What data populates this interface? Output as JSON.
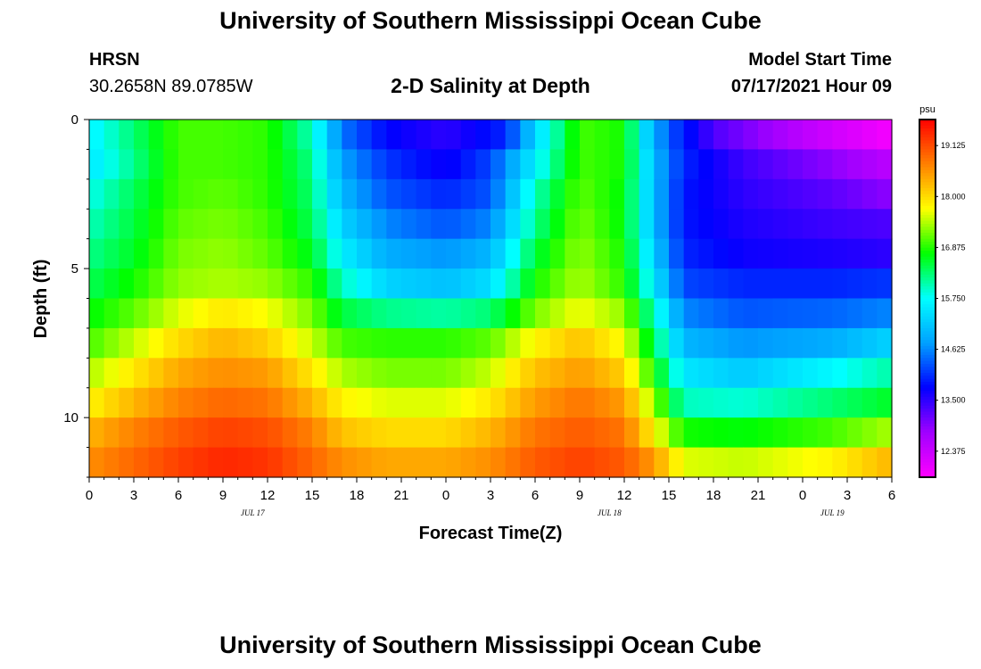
{
  "header": {
    "title": "University of Southern Mississippi Ocean Cube",
    "station": "HRSN",
    "coordinates": "30.2658N  89.0785W",
    "subtitle": "2-D Salinity at Depth",
    "model_start_label": "Model Start Time",
    "model_start_value": "07/17/2021 Hour 09"
  },
  "footer": {
    "title": "University of Southern Mississippi Ocean Cube"
  },
  "chart_data": {
    "type": "heatmap",
    "title": "2-D Salinity at Depth",
    "xlabel": "Forecast Time(Z)",
    "ylabel": "Depth (ft)",
    "x_tick_labels": [
      "0",
      "3",
      "6",
      "9",
      "12",
      "15",
      "18",
      "21",
      "0",
      "3",
      "6",
      "9",
      "12",
      "15",
      "18",
      "21",
      "0",
      "3",
      "6"
    ],
    "date_labels": [
      {
        "label": "JUL 17",
        "hour": 11
      },
      {
        "label": "JUL 18",
        "hour": 35
      },
      {
        "label": "JUL 19",
        "hour": 50
      }
    ],
    "x_range_hours": [
      0,
      54
    ],
    "y_ticks": [
      0,
      5,
      10
    ],
    "y_range_ft": [
      0,
      12
    ],
    "colorbar": {
      "unit": "psu",
      "ticks": [
        "19.125",
        "18.000",
        "16.875",
        "15.750",
        "14.625",
        "13.500",
        "12.375"
      ],
      "range": [
        11.8,
        19.7
      ],
      "colors": [
        "#ff00ff",
        "#a000ff",
        "#0000ff",
        "#00a0ff",
        "#00ffff",
        "#00ff00",
        "#ffff00",
        "#ff8000",
        "#ff0000"
      ]
    },
    "rows": [
      {
        "depth": 0.5,
        "keys": [
          [
            0,
            15.6
          ],
          [
            3,
            16.3
          ],
          [
            6,
            17.0
          ],
          [
            9,
            17.0
          ],
          [
            12,
            16.9
          ],
          [
            15,
            16.0
          ],
          [
            17,
            14.5
          ],
          [
            20,
            13.8
          ],
          [
            24,
            13.5
          ],
          [
            28,
            14.0
          ],
          [
            30,
            15.3
          ],
          [
            33,
            17.0
          ],
          [
            36,
            16.8
          ],
          [
            37.5,
            15.3
          ],
          [
            39,
            14.3
          ],
          [
            42,
            13.3
          ],
          [
            48,
            12.5
          ],
          [
            54,
            11.9
          ]
        ]
      },
      {
        "depth": 1.5,
        "keys": [
          [
            0,
            15.5
          ],
          [
            3,
            16.2
          ],
          [
            6,
            17.0
          ],
          [
            9,
            17.0
          ],
          [
            12,
            16.9
          ],
          [
            15,
            16.2
          ],
          [
            17,
            14.8
          ],
          [
            20,
            14.1
          ],
          [
            24,
            13.7
          ],
          [
            27,
            14.2
          ],
          [
            30,
            15.6
          ],
          [
            33,
            17.0
          ],
          [
            36,
            16.8
          ],
          [
            38,
            15.0
          ],
          [
            40,
            14.0
          ],
          [
            44,
            13.4
          ],
          [
            50,
            12.9
          ],
          [
            54,
            12.5
          ]
        ]
      },
      {
        "depth": 2.5,
        "keys": [
          [
            0,
            15.8
          ],
          [
            3,
            16.4
          ],
          [
            6,
            17.0
          ],
          [
            9,
            17.1
          ],
          [
            12,
            16.9
          ],
          [
            15,
            16.3
          ],
          [
            17,
            15.0
          ],
          [
            20,
            14.3
          ],
          [
            24,
            14.0
          ],
          [
            27,
            14.3
          ],
          [
            30,
            16.0
          ],
          [
            33,
            17.1
          ],
          [
            36,
            16.7
          ],
          [
            38,
            15.0
          ],
          [
            40,
            13.9
          ],
          [
            44,
            13.5
          ],
          [
            50,
            13.2
          ],
          [
            54,
            12.9
          ]
        ]
      },
      {
        "depth": 3.5,
        "keys": [
          [
            0,
            16.0
          ],
          [
            3,
            16.5
          ],
          [
            6,
            17.1
          ],
          [
            9,
            17.2
          ],
          [
            12,
            17.0
          ],
          [
            15,
            16.4
          ],
          [
            17,
            15.3
          ],
          [
            20,
            14.6
          ],
          [
            24,
            14.3
          ],
          [
            27,
            14.6
          ],
          [
            30,
            16.2
          ],
          [
            33,
            17.2
          ],
          [
            36,
            16.7
          ],
          [
            38,
            15.0
          ],
          [
            40,
            13.9
          ],
          [
            44,
            13.6
          ],
          [
            50,
            13.4
          ],
          [
            54,
            13.3
          ]
        ]
      },
      {
        "depth": 4.5,
        "keys": [
          [
            0,
            16.2
          ],
          [
            3,
            16.6
          ],
          [
            6,
            17.2
          ],
          [
            9,
            17.3
          ],
          [
            12,
            17.1
          ],
          [
            15,
            16.6
          ],
          [
            17,
            15.6
          ],
          [
            20,
            14.9
          ],
          [
            24,
            14.7
          ],
          [
            27,
            15.0
          ],
          [
            30,
            16.5
          ],
          [
            33,
            17.3
          ],
          [
            36,
            16.8
          ],
          [
            38,
            15.2
          ],
          [
            40,
            14.0
          ],
          [
            44,
            13.7
          ],
          [
            50,
            13.6
          ],
          [
            54,
            13.5
          ]
        ]
      },
      {
        "depth": 5.5,
        "keys": [
          [
            0,
            16.4
          ],
          [
            3,
            16.8
          ],
          [
            6,
            17.3
          ],
          [
            9,
            17.4
          ],
          [
            12,
            17.3
          ],
          [
            15,
            16.9
          ],
          [
            17,
            16.0
          ],
          [
            20,
            15.3
          ],
          [
            24,
            15.1
          ],
          [
            27,
            15.4
          ],
          [
            30,
            16.8
          ],
          [
            33,
            17.4
          ],
          [
            36,
            16.9
          ],
          [
            38,
            15.5
          ],
          [
            40,
            14.2
          ],
          [
            44,
            14.0
          ],
          [
            50,
            14.0
          ],
          [
            54,
            14.1
          ]
        ]
      },
      {
        "depth": 6.5,
        "keys": [
          [
            0,
            16.7
          ],
          [
            3,
            17.1
          ],
          [
            6,
            17.6
          ],
          [
            9,
            17.9
          ],
          [
            12,
            17.7
          ],
          [
            15,
            17.2
          ],
          [
            17,
            16.5
          ],
          [
            20,
            16.2
          ],
          [
            24,
            16.1
          ],
          [
            27,
            16.3
          ],
          [
            30,
            17.2
          ],
          [
            33,
            17.7
          ],
          [
            36,
            17.3
          ],
          [
            38,
            16.0
          ],
          [
            40,
            14.6
          ],
          [
            44,
            14.3
          ],
          [
            50,
            14.4
          ],
          [
            54,
            14.6
          ]
        ]
      },
      {
        "depth": 7.5,
        "keys": [
          [
            0,
            17.0
          ],
          [
            3,
            17.5
          ],
          [
            6,
            18.0
          ],
          [
            9,
            18.3
          ],
          [
            12,
            18.1
          ],
          [
            15,
            17.5
          ],
          [
            17,
            17.0
          ],
          [
            20,
            16.9
          ],
          [
            24,
            16.9
          ],
          [
            27,
            17.1
          ],
          [
            30,
            17.8
          ],
          [
            33,
            18.2
          ],
          [
            36,
            17.7
          ],
          [
            38,
            16.4
          ],
          [
            40,
            15.0
          ],
          [
            44,
            14.7
          ],
          [
            50,
            14.9
          ],
          [
            54,
            15.3
          ]
        ]
      },
      {
        "depth": 8.5,
        "keys": [
          [
            0,
            17.4
          ],
          [
            3,
            17.9
          ],
          [
            6,
            18.4
          ],
          [
            9,
            18.6
          ],
          [
            12,
            18.5
          ],
          [
            15,
            17.9
          ],
          [
            17,
            17.4
          ],
          [
            20,
            17.2
          ],
          [
            24,
            17.2
          ],
          [
            27,
            17.5
          ],
          [
            30,
            18.2
          ],
          [
            33,
            18.5
          ],
          [
            36,
            18.1
          ],
          [
            38,
            16.8
          ],
          [
            40,
            15.5
          ],
          [
            44,
            15.2
          ],
          [
            50,
            15.7
          ],
          [
            54,
            16.1
          ]
        ]
      },
      {
        "depth": 9.5,
        "keys": [
          [
            0,
            17.8
          ],
          [
            3,
            18.3
          ],
          [
            6,
            18.7
          ],
          [
            9,
            18.9
          ],
          [
            12,
            18.8
          ],
          [
            15,
            18.3
          ],
          [
            17,
            17.8
          ],
          [
            20,
            17.6
          ],
          [
            24,
            17.6
          ],
          [
            27,
            17.9
          ],
          [
            30,
            18.5
          ],
          [
            33,
            18.8
          ],
          [
            36,
            18.5
          ],
          [
            38,
            17.3
          ],
          [
            40,
            16.0
          ],
          [
            44,
            15.9
          ],
          [
            50,
            16.3
          ],
          [
            54,
            16.6
          ]
        ]
      },
      {
        "depth": 10.5,
        "keys": [
          [
            0,
            18.3
          ],
          [
            3,
            18.7
          ],
          [
            6,
            19.0
          ],
          [
            9,
            19.2
          ],
          [
            12,
            19.1
          ],
          [
            15,
            18.7
          ],
          [
            17,
            18.2
          ],
          [
            20,
            18.0
          ],
          [
            24,
            18.0
          ],
          [
            27,
            18.3
          ],
          [
            30,
            18.8
          ],
          [
            33,
            19.0
          ],
          [
            36,
            18.8
          ],
          [
            38,
            17.8
          ],
          [
            40,
            16.8
          ],
          [
            44,
            16.7
          ],
          [
            50,
            17.0
          ],
          [
            54,
            17.4
          ]
        ]
      },
      {
        "depth": 11.5,
        "keys": [
          [
            0,
            18.6
          ],
          [
            3,
            18.9
          ],
          [
            6,
            19.2
          ],
          [
            9,
            19.4
          ],
          [
            12,
            19.3
          ],
          [
            15,
            18.9
          ],
          [
            17,
            18.6
          ],
          [
            20,
            18.4
          ],
          [
            24,
            18.4
          ],
          [
            27,
            18.6
          ],
          [
            30,
            19.0
          ],
          [
            33,
            19.2
          ],
          [
            36,
            19.0
          ],
          [
            38,
            18.5
          ],
          [
            40,
            17.6
          ],
          [
            44,
            17.5
          ],
          [
            50,
            17.8
          ],
          [
            54,
            18.3
          ]
        ]
      }
    ]
  }
}
